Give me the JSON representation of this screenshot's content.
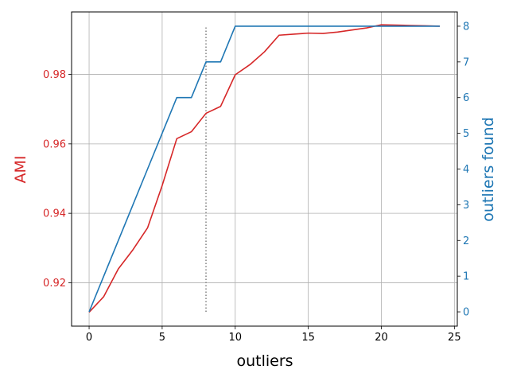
{
  "chart_data": {
    "type": "line",
    "xlabel": "outliers",
    "ylabel_left": "AMI",
    "ylabel_right": "outliers found",
    "xlim": [
      -1.2,
      25.2
    ],
    "ylim_left": [
      0.9075,
      0.998
    ],
    "ylim_right": [
      -0.4,
      8.4
    ],
    "x_ticks": [
      0,
      5,
      10,
      15,
      20,
      25
    ],
    "y_left_ticks": [
      0.92,
      0.94,
      0.96,
      0.98
    ],
    "y_left_tick_labels": [
      "0.92",
      "0.94",
      "0.96",
      "0.98"
    ],
    "y_right_ticks": [
      0,
      1,
      2,
      3,
      4,
      5,
      6,
      7,
      8
    ],
    "grid": true,
    "colors": {
      "ami": "#d62728",
      "found": "#1f77b4",
      "grid": "#b0b0b0",
      "threshold": "#808080",
      "axes": "#000000"
    },
    "series": [
      {
        "axis": "left",
        "color": "#d62728",
        "x": [
          0,
          1,
          2,
          3,
          4,
          5,
          6,
          7,
          8,
          9,
          10,
          11,
          12,
          13,
          14,
          15,
          16,
          17,
          18,
          19,
          20,
          21,
          22,
          23,
          24
        ],
        "y": [
          0.9115,
          0.916,
          0.924,
          0.9295,
          0.9358,
          0.948,
          0.9615,
          0.9635,
          0.9688,
          0.9708,
          0.9799,
          0.9828,
          0.9865,
          0.9913,
          0.9916,
          0.9919,
          0.9918,
          0.9922,
          0.9928,
          0.9934,
          0.9943,
          0.9942,
          0.9941,
          0.994,
          0.9939
        ]
      },
      {
        "axis": "right",
        "color": "#1f77b4",
        "x": [
          0,
          1,
          2,
          3,
          4,
          5,
          6,
          7,
          8,
          9,
          10,
          11,
          12,
          13,
          14,
          15,
          16,
          17,
          18,
          19,
          20,
          21,
          22,
          23,
          24
        ],
        "y": [
          0,
          1,
          2,
          3,
          4,
          5,
          6,
          6,
          7,
          7,
          8,
          8,
          8,
          8,
          8,
          8,
          8,
          8,
          8,
          8,
          8,
          8,
          8,
          8,
          8
        ]
      }
    ],
    "vline": {
      "x": 8,
      "y_from": 0,
      "y_to": 8,
      "axis": "right",
      "style": "dotted"
    }
  }
}
